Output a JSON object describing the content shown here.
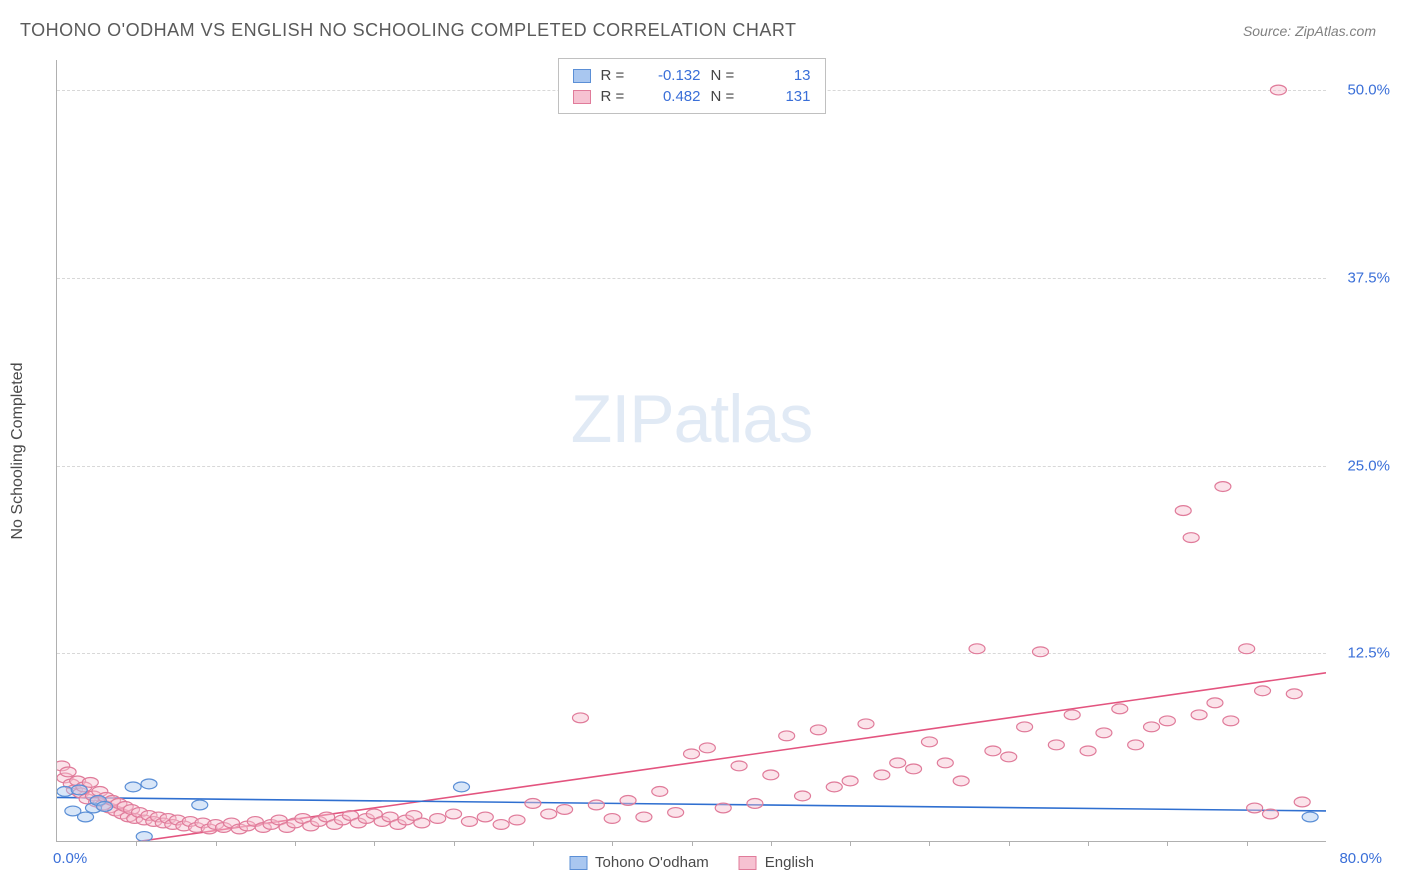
{
  "header": {
    "title": "TOHONO O'ODHAM VS ENGLISH NO SCHOOLING COMPLETED CORRELATION CHART",
    "source_label": "Source: ",
    "source_name": "ZipAtlas.com"
  },
  "watermark": {
    "bold": "ZIP",
    "light": "atlas"
  },
  "chart": {
    "type": "scatter",
    "ylabel": "No Schooling Completed",
    "xlim": [
      0,
      80
    ],
    "ylim": [
      0,
      52
    ],
    "yticks": [
      {
        "v": 12.5,
        "label": "12.5%"
      },
      {
        "v": 25.0,
        "label": "25.0%"
      },
      {
        "v": 37.5,
        "label": "37.5%"
      },
      {
        "v": 50.0,
        "label": "50.0%"
      }
    ],
    "xticks_minor_step": 5,
    "xaxis_labels": {
      "left": {
        "text": "0.0%",
        "color": "#3a6fd8"
      },
      "right": {
        "text": "80.0%",
        "color": "#3a6fd8"
      }
    },
    "grid_color": "#d8d8d8",
    "axis_color": "#b0b0b0",
    "background_color": "#ffffff",
    "marker_radius": 8,
    "marker_opacity": 0.45,
    "marker_stroke_width": 1.2,
    "line_width": 2,
    "series": [
      {
        "name": "Tohono O'odham",
        "fill": "#a9c7f0",
        "stroke": "#5b8fd6",
        "line_color": "#2f6fd0",
        "stats": {
          "R": "-0.132",
          "N": "13"
        },
        "points": [
          [
            0.5,
            3.3
          ],
          [
            1.0,
            2.0
          ],
          [
            1.4,
            3.4
          ],
          [
            1.8,
            1.6
          ],
          [
            2.3,
            2.2
          ],
          [
            2.6,
            2.7
          ],
          [
            3.0,
            2.3
          ],
          [
            4.8,
            3.6
          ],
          [
            5.5,
            0.3
          ],
          [
            5.8,
            3.8
          ],
          [
            9.0,
            2.4
          ],
          [
            25.5,
            3.6
          ],
          [
            79.0,
            1.6
          ]
        ],
        "regression": {
          "x0": 0,
          "y0": 2.9,
          "x1": 80,
          "y1": 2.0
        }
      },
      {
        "name": "English",
        "fill": "#f6c1d1",
        "stroke": "#e07b9a",
        "line_color": "#e3547f",
        "stats": {
          "R": "0.482",
          "N": "131"
        },
        "points": [
          [
            0.3,
            5.0
          ],
          [
            0.5,
            4.2
          ],
          [
            0.7,
            4.6
          ],
          [
            0.9,
            3.8
          ],
          [
            1.1,
            3.4
          ],
          [
            1.3,
            4.0
          ],
          [
            1.5,
            3.2
          ],
          [
            1.7,
            3.6
          ],
          [
            1.9,
            2.8
          ],
          [
            2.1,
            3.9
          ],
          [
            2.3,
            3.0
          ],
          [
            2.5,
            2.6
          ],
          [
            2.7,
            3.3
          ],
          [
            2.9,
            2.4
          ],
          [
            3.1,
            2.9
          ],
          [
            3.3,
            2.2
          ],
          [
            3.5,
            2.7
          ],
          [
            3.7,
            2.0
          ],
          [
            3.9,
            2.5
          ],
          [
            4.1,
            1.8
          ],
          [
            4.3,
            2.3
          ],
          [
            4.5,
            1.6
          ],
          [
            4.7,
            2.1
          ],
          [
            4.9,
            1.5
          ],
          [
            5.2,
            1.9
          ],
          [
            5.5,
            1.4
          ],
          [
            5.8,
            1.7
          ],
          [
            6.1,
            1.3
          ],
          [
            6.4,
            1.6
          ],
          [
            6.7,
            1.2
          ],
          [
            7.0,
            1.5
          ],
          [
            7.3,
            1.1
          ],
          [
            7.6,
            1.4
          ],
          [
            8.0,
            1.0
          ],
          [
            8.4,
            1.3
          ],
          [
            8.8,
            0.9
          ],
          [
            9.2,
            1.2
          ],
          [
            9.6,
            0.8
          ],
          [
            10.0,
            1.1
          ],
          [
            10.5,
            0.9
          ],
          [
            11.0,
            1.2
          ],
          [
            11.5,
            0.8
          ],
          [
            12.0,
            1.0
          ],
          [
            12.5,
            1.3
          ],
          [
            13.0,
            0.9
          ],
          [
            13.5,
            1.1
          ],
          [
            14.0,
            1.4
          ],
          [
            14.5,
            0.9
          ],
          [
            15.0,
            1.2
          ],
          [
            15.5,
            1.5
          ],
          [
            16.0,
            1.0
          ],
          [
            16.5,
            1.3
          ],
          [
            17.0,
            1.6
          ],
          [
            17.5,
            1.1
          ],
          [
            18.0,
            1.4
          ],
          [
            18.5,
            1.7
          ],
          [
            19.0,
            1.2
          ],
          [
            19.5,
            1.5
          ],
          [
            20.0,
            1.8
          ],
          [
            20.5,
            1.3
          ],
          [
            21.0,
            1.6
          ],
          [
            21.5,
            1.1
          ],
          [
            22.0,
            1.4
          ],
          [
            22.5,
            1.7
          ],
          [
            23.0,
            1.2
          ],
          [
            24.0,
            1.5
          ],
          [
            25.0,
            1.8
          ],
          [
            26.0,
            1.3
          ],
          [
            27.0,
            1.6
          ],
          [
            28.0,
            1.1
          ],
          [
            29.0,
            1.4
          ],
          [
            30.0,
            2.5
          ],
          [
            31.0,
            1.8
          ],
          [
            32.0,
            2.1
          ],
          [
            33.0,
            8.2
          ],
          [
            34.0,
            2.4
          ],
          [
            35.0,
            1.5
          ],
          [
            36.0,
            2.7
          ],
          [
            37.0,
            1.6
          ],
          [
            38.0,
            3.3
          ],
          [
            39.0,
            1.9
          ],
          [
            40.0,
            5.8
          ],
          [
            41.0,
            6.2
          ],
          [
            42.0,
            2.2
          ],
          [
            43.0,
            5.0
          ],
          [
            44.0,
            2.5
          ],
          [
            45.0,
            4.4
          ],
          [
            46.0,
            7.0
          ],
          [
            47.0,
            3.0
          ],
          [
            48.0,
            7.4
          ],
          [
            49.0,
            3.6
          ],
          [
            50.0,
            4.0
          ],
          [
            51.0,
            7.8
          ],
          [
            52.0,
            4.4
          ],
          [
            53.0,
            5.2
          ],
          [
            54.0,
            4.8
          ],
          [
            55.0,
            6.6
          ],
          [
            56.0,
            5.2
          ],
          [
            57.0,
            4.0
          ],
          [
            58.0,
            12.8
          ],
          [
            59.0,
            6.0
          ],
          [
            60.0,
            5.6
          ],
          [
            61.0,
            7.6
          ],
          [
            62.0,
            12.6
          ],
          [
            63.0,
            6.4
          ],
          [
            64.0,
            8.4
          ],
          [
            65.0,
            6.0
          ],
          [
            66.0,
            7.2
          ],
          [
            67.0,
            8.8
          ],
          [
            68.0,
            6.4
          ],
          [
            69.0,
            7.6
          ],
          [
            70.0,
            8.0
          ],
          [
            71.0,
            22.0
          ],
          [
            71.5,
            20.2
          ],
          [
            72.0,
            8.4
          ],
          [
            73.0,
            9.2
          ],
          [
            73.5,
            23.6
          ],
          [
            74.0,
            8.0
          ],
          [
            75.0,
            12.8
          ],
          [
            75.5,
            2.2
          ],
          [
            76.0,
            10.0
          ],
          [
            76.5,
            1.8
          ],
          [
            77.0,
            50.0
          ],
          [
            78.0,
            9.8
          ],
          [
            78.5,
            2.6
          ]
        ],
        "regression": {
          "x0": 2,
          "y0": -0.5,
          "x1": 80,
          "y1": 11.2
        }
      }
    ]
  },
  "legend_top": {
    "r_label": "R =",
    "n_label": "N =",
    "value_color": "#3a6fd8"
  },
  "legend_bottom": {
    "items": [
      {
        "swatch_fill": "#a9c7f0",
        "swatch_stroke": "#5b8fd6",
        "label": "Tohono O'odham"
      },
      {
        "swatch_fill": "#f6c1d1",
        "swatch_stroke": "#e07b9a",
        "label": "English"
      }
    ]
  }
}
